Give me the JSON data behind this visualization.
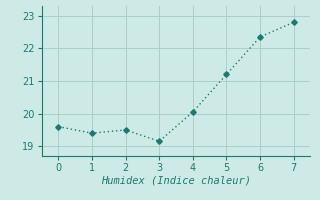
{
  "x": [
    0,
    1,
    2,
    3,
    4,
    5,
    6,
    7
  ],
  "y": [
    19.6,
    19.4,
    19.5,
    19.15,
    20.05,
    21.2,
    22.35,
    22.8
  ],
  "xlabel": "Humidex (Indice chaleur)",
  "ylim": [
    18.7,
    23.3
  ],
  "xlim": [
    -0.5,
    7.5
  ],
  "yticks": [
    19,
    20,
    21,
    22,
    23
  ],
  "xticks": [
    0,
    1,
    2,
    3,
    4,
    5,
    6,
    7
  ],
  "line_color": "#1a7a6e",
  "bg_color": "#ceeae6",
  "grid_color": "#aacfcc",
  "marker": "D",
  "markersize": 2.8,
  "linewidth": 1.0,
  "linestyle": ":"
}
